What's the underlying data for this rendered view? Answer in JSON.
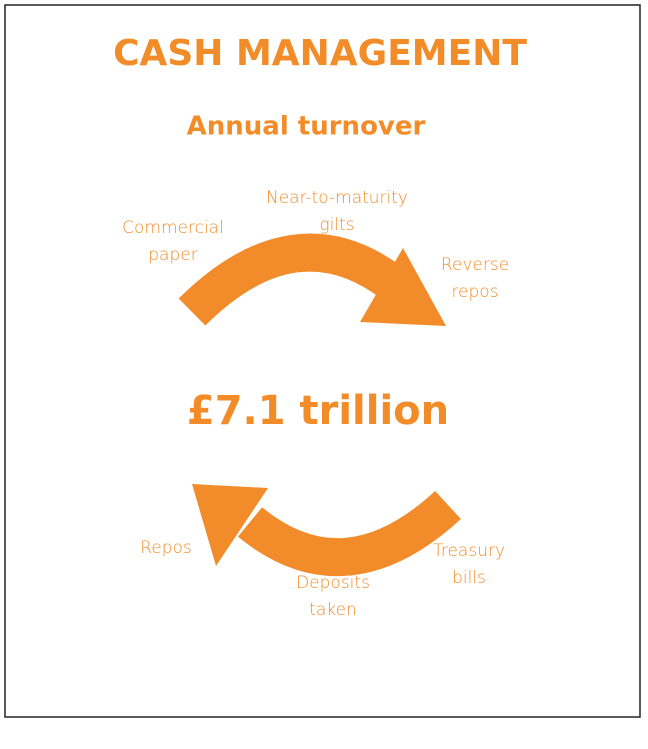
{
  "title": "CASH MANAGEMENT",
  "subtitle": "Annual turnover",
  "total": "£7.1 trillion",
  "top_flow": [
    {
      "lines": [
        "Commercial",
        "paper"
      ]
    },
    {
      "lines": [
        "Near-to-maturity",
        "gilts"
      ]
    },
    {
      "lines": [
        "Reverse",
        "repos"
      ]
    }
  ],
  "bottom_flow": [
    {
      "lines": [
        "Repos"
      ]
    },
    {
      "lines": [
        "Deposits",
        "taken"
      ]
    },
    {
      "lines": [
        "Treasury",
        "bills"
      ]
    }
  ]
}
